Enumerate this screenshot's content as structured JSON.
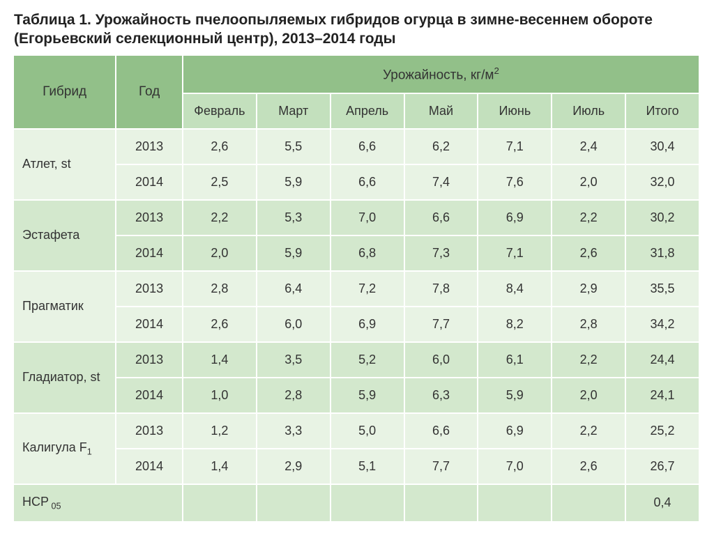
{
  "title_line1": "Таблица 1. Урожайность пчелоопыляемых гибридов огурца в зимне-весеннем обороте",
  "title_line2": "(Егорьевский селекционный центр), 2013–2014 годы",
  "headers": {
    "hybrid": "Гибрид",
    "year": "Год",
    "yield_group": "Урожайность, кг/м",
    "yield_unit_sup": "2",
    "months": [
      "Февраль",
      "Март",
      "Апрель",
      "Май",
      "Июнь",
      "Июль",
      "Итого"
    ]
  },
  "rows": [
    {
      "name": "Атлет, st",
      "light": true,
      "years": [
        {
          "year": "2013",
          "vals": [
            "2,6",
            "5,5",
            "6,6",
            "6,2",
            "7,1",
            "2,4",
            "30,4"
          ]
        },
        {
          "year": "2014",
          "vals": [
            "2,5",
            "5,9",
            "6,6",
            "7,4",
            "7,6",
            "2,0",
            "32,0"
          ]
        }
      ]
    },
    {
      "name": "Эстафета",
      "light": false,
      "years": [
        {
          "year": "2013",
          "vals": [
            "2,2",
            "5,3",
            "7,0",
            "6,6",
            "6,9",
            "2,2",
            "30,2"
          ]
        },
        {
          "year": "2014",
          "vals": [
            "2,0",
            "5,9",
            "6,8",
            "7,3",
            "7,1",
            "2,6",
            "31,8"
          ]
        }
      ]
    },
    {
      "name": "Прагматик",
      "light": true,
      "years": [
        {
          "year": "2013",
          "vals": [
            "2,8",
            "6,4",
            "7,2",
            "7,8",
            "8,4",
            "2,9",
            "35,5"
          ]
        },
        {
          "year": "2014",
          "vals": [
            "2,6",
            "6,0",
            "6,9",
            "7,7",
            "8,2",
            "2,8",
            "34,2"
          ]
        }
      ]
    },
    {
      "name": "Гладиатор, st",
      "light": false,
      "years": [
        {
          "year": "2013",
          "vals": [
            "1,4",
            "3,5",
            "5,2",
            "6,0",
            "6,1",
            "2,2",
            "24,4"
          ]
        },
        {
          "year": "2014",
          "vals": [
            "1,0",
            "2,8",
            "5,9",
            "6,3",
            "5,9",
            "2,0",
            "24,1"
          ]
        }
      ]
    },
    {
      "name": "Калигула F",
      "name_sub": "1",
      "light": true,
      "years": [
        {
          "year": "2013",
          "vals": [
            "1,2",
            "3,3",
            "5,0",
            "6,6",
            "6,9",
            "2,2",
            "25,2"
          ]
        },
        {
          "year": "2014",
          "vals": [
            "1,4",
            "2,9",
            "5,1",
            "7,7",
            "7,0",
            "2,6",
            "26,7"
          ]
        }
      ]
    },
    {
      "name": "НСР",
      "name_sub": "05",
      "light": false,
      "single": true,
      "vals": [
        "",
        "",
        "",
        "",
        "",
        "",
        "0,4"
      ]
    }
  ],
  "colors": {
    "header_top": "#92c089",
    "header_sub": "#c3e0bd",
    "row_light": "#e8f3e4",
    "row_dark": "#d3e8cd",
    "border": "#ffffff"
  }
}
